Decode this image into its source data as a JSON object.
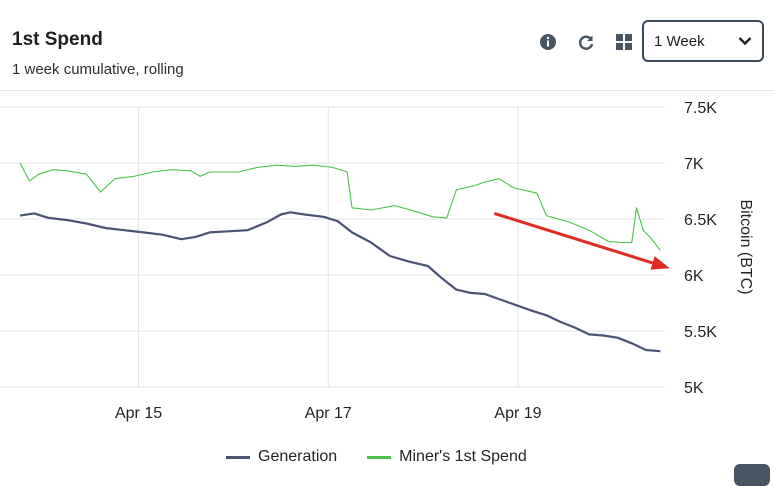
{
  "header": {
    "title": "1st Spend",
    "subtitle": "1 week cumulative, rolling",
    "range_value": "1 Week"
  },
  "icons": [
    "info-icon",
    "refresh-icon",
    "grid-icon",
    "chevron-down-icon"
  ],
  "colors": {
    "generation": "#4a5470",
    "miner_spend": "#4cc24a",
    "arrow": "#e02a22",
    "grid": "#e3e5e8"
  },
  "legend_labels": {
    "generation": "Generation",
    "miner_spend": "Miner's 1st Spend"
  },
  "chart_data": {
    "type": "line",
    "title": "1st Spend",
    "subtitle": "1 week cumulative, rolling",
    "xlabel": "",
    "ylabel": "Bitcoin (BTC)",
    "x_ticks": [
      "Apr 15",
      "Apr 17",
      "Apr 19"
    ],
    "x_tick_positions_days": [
      1.25,
      3.25,
      5.25
    ],
    "x_range_days": [
      0,
      6.8
    ],
    "y_ticks": [
      "5K",
      "5.5K",
      "6K",
      "6.5K",
      "7K",
      "7.5K"
    ],
    "ylim": [
      5000,
      7500
    ],
    "grid": true,
    "legend": "bottom-center",
    "series": [
      {
        "name": "Generation",
        "points": [
          [
            0.0,
            6530
          ],
          [
            0.15,
            6550
          ],
          [
            0.3,
            6510
          ],
          [
            0.5,
            6490
          ],
          [
            0.7,
            6460
          ],
          [
            0.9,
            6420
          ],
          [
            1.1,
            6400
          ],
          [
            1.3,
            6380
          ],
          [
            1.5,
            6360
          ],
          [
            1.7,
            6320
          ],
          [
            1.85,
            6340
          ],
          [
            2.0,
            6380
          ],
          [
            2.2,
            6390
          ],
          [
            2.4,
            6400
          ],
          [
            2.6,
            6470
          ],
          [
            2.75,
            6540
          ],
          [
            2.85,
            6560
          ],
          [
            3.0,
            6540
          ],
          [
            3.2,
            6520
          ],
          [
            3.35,
            6480
          ],
          [
            3.5,
            6380
          ],
          [
            3.7,
            6290
          ],
          [
            3.9,
            6170
          ],
          [
            4.1,
            6120
          ],
          [
            4.3,
            6080
          ],
          [
            4.45,
            5970
          ],
          [
            4.6,
            5870
          ],
          [
            4.75,
            5840
          ],
          [
            4.9,
            5830
          ],
          [
            5.0,
            5800
          ],
          [
            5.2,
            5740
          ],
          [
            5.4,
            5680
          ],
          [
            5.55,
            5640
          ],
          [
            5.7,
            5580
          ],
          [
            5.85,
            5530
          ],
          [
            6.0,
            5470
          ],
          [
            6.15,
            5460
          ],
          [
            6.3,
            5440
          ],
          [
            6.45,
            5390
          ],
          [
            6.6,
            5330
          ],
          [
            6.75,
            5320
          ]
        ]
      },
      {
        "name": "Miner's 1st Spend",
        "points": [
          [
            0.0,
            7000
          ],
          [
            0.1,
            6840
          ],
          [
            0.2,
            6900
          ],
          [
            0.35,
            6940
          ],
          [
            0.5,
            6930
          ],
          [
            0.7,
            6900
          ],
          [
            0.85,
            6740
          ],
          [
            1.0,
            6860
          ],
          [
            1.2,
            6880
          ],
          [
            1.4,
            6920
          ],
          [
            1.6,
            6940
          ],
          [
            1.8,
            6930
          ],
          [
            1.9,
            6880
          ],
          [
            2.0,
            6920
          ],
          [
            2.3,
            6920
          ],
          [
            2.5,
            6960
          ],
          [
            2.7,
            6980
          ],
          [
            2.9,
            6970
          ],
          [
            3.1,
            6980
          ],
          [
            3.3,
            6960
          ],
          [
            3.45,
            6920
          ],
          [
            3.5,
            6600
          ],
          [
            3.7,
            6580
          ],
          [
            3.95,
            6620
          ],
          [
            4.2,
            6560
          ],
          [
            4.35,
            6520
          ],
          [
            4.5,
            6510
          ],
          [
            4.6,
            6760
          ],
          [
            4.8,
            6800
          ],
          [
            4.9,
            6830
          ],
          [
            5.05,
            6860
          ],
          [
            5.2,
            6780
          ],
          [
            5.45,
            6730
          ],
          [
            5.55,
            6530
          ],
          [
            5.8,
            6470
          ],
          [
            6.0,
            6400
          ],
          [
            6.2,
            6300
          ],
          [
            6.35,
            6290
          ],
          [
            6.45,
            6290
          ],
          [
            6.5,
            6600
          ],
          [
            6.57,
            6400
          ],
          [
            6.65,
            6330
          ],
          [
            6.75,
            6220
          ]
        ]
      }
    ],
    "annotations": [
      {
        "type": "arrow",
        "color": "#e02a22",
        "from": [
          5.0,
          6550
        ],
        "to": [
          6.85,
          6060
        ]
      }
    ]
  }
}
